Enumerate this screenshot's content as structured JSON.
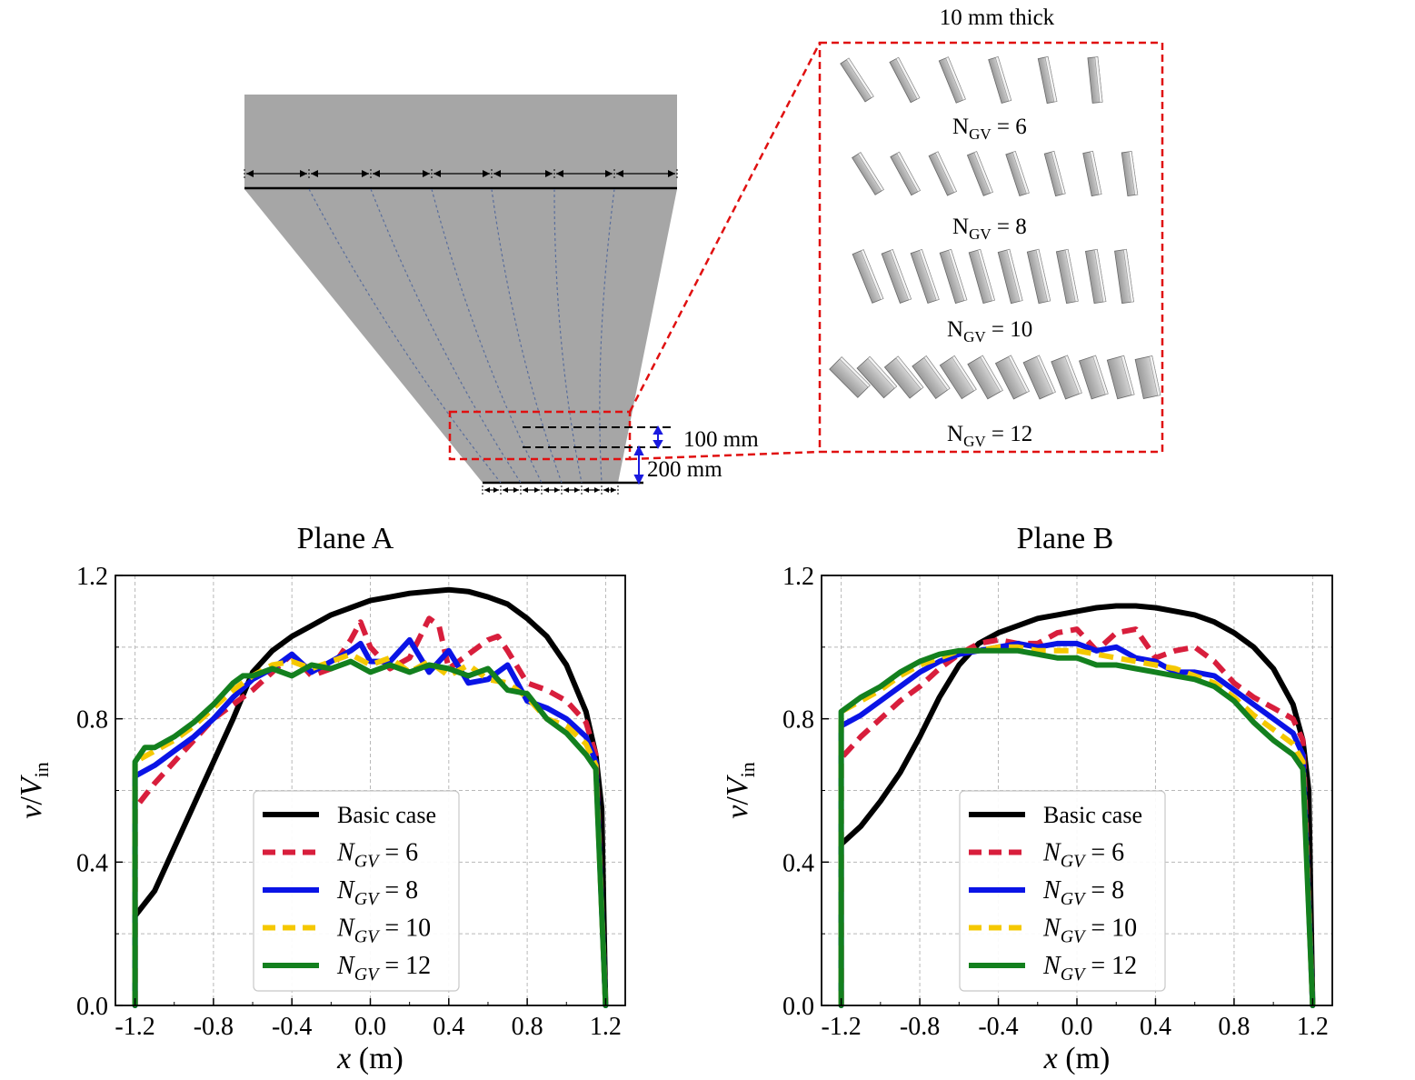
{
  "diagram": {
    "inset_title": "10 mm thick",
    "dim_top": "100 mm",
    "dim_bottom": "200 mm",
    "configs": [
      {
        "symbol": "N",
        "subscript": "GV",
        "equals": "= 6",
        "vanes": 6
      },
      {
        "symbol": "N",
        "subscript": "GV",
        "equals": "= 8",
        "vanes": 8
      },
      {
        "symbol": "N",
        "subscript": "GV",
        "equals": "= 10",
        "vanes": 10
      },
      {
        "symbol": "N",
        "subscript": "GV",
        "equals": "= 12",
        "vanes": 12
      }
    ]
  },
  "chart_data": [
    {
      "type": "line",
      "title": "Plane A",
      "xlabel_var": "x",
      "xlabel_unit": " (m)",
      "ylabel_num": "v",
      "ylabel_slash": "/",
      "ylabel_den": "V",
      "ylabel_sub": "in",
      "xlim": [
        -1.3,
        1.3
      ],
      "ylim": [
        0,
        1.2
      ],
      "xticks": [
        "-1.2",
        "-0.8",
        "-0.4",
        "0.0",
        "0.4",
        "0.8",
        "1.2"
      ],
      "yticks": [
        "0.0",
        "0.4",
        "0.8",
        "1.2"
      ],
      "grid": true,
      "legend_position": "lower-center",
      "series": [
        {
          "name": "Basic case",
          "color": "#000000",
          "dash": "solid",
          "x": [
            -1.2,
            -1.1,
            -1.0,
            -0.9,
            -0.8,
            -0.7,
            -0.6,
            -0.5,
            -0.4,
            -0.3,
            -0.2,
            -0.1,
            0.0,
            0.1,
            0.2,
            0.3,
            0.4,
            0.5,
            0.6,
            0.7,
            0.8,
            0.9,
            1.0,
            1.1,
            1.15,
            1.18,
            1.2
          ],
          "y": [
            0.25,
            0.32,
            0.44,
            0.56,
            0.68,
            0.8,
            0.93,
            0.99,
            1.03,
            1.06,
            1.09,
            1.11,
            1.13,
            1.14,
            1.15,
            1.155,
            1.16,
            1.155,
            1.14,
            1.12,
            1.08,
            1.03,
            0.95,
            0.82,
            0.7,
            0.55,
            0.0
          ]
        },
        {
          "name": "= 6",
          "label_symbol": "N",
          "label_sub": "GV",
          "color": "#d81e3c",
          "dash": "dashed",
          "x": [
            -1.2,
            -1.1,
            -1.0,
            -0.9,
            -0.8,
            -0.7,
            -0.6,
            -0.5,
            -0.4,
            -0.3,
            -0.2,
            -0.1,
            -0.05,
            0.0,
            0.1,
            0.2,
            0.3,
            0.35,
            0.4,
            0.5,
            0.6,
            0.65,
            0.7,
            0.8,
            0.9,
            1.0,
            1.1,
            1.15,
            1.2
          ],
          "y": [
            0.55,
            0.62,
            0.68,
            0.74,
            0.8,
            0.84,
            0.88,
            0.93,
            0.98,
            0.92,
            0.94,
            1.02,
            1.07,
            1.0,
            0.94,
            0.97,
            1.08,
            1.06,
            0.94,
            0.98,
            1.02,
            1.03,
            0.99,
            0.9,
            0.88,
            0.85,
            0.79,
            0.7,
            0.0
          ]
        },
        {
          "name": "= 8",
          "label_symbol": "N",
          "label_sub": "GV",
          "color": "#0a14e6",
          "dash": "solid",
          "x": [
            -1.2,
            -1.1,
            -1.0,
            -0.9,
            -0.8,
            -0.7,
            -0.6,
            -0.5,
            -0.4,
            -0.3,
            -0.2,
            -0.1,
            -0.05,
            0.0,
            0.1,
            0.2,
            0.3,
            0.4,
            0.5,
            0.6,
            0.7,
            0.8,
            0.9,
            1.0,
            1.1,
            1.15,
            1.2
          ],
          "y": [
            0.64,
            0.67,
            0.71,
            0.75,
            0.8,
            0.86,
            0.91,
            0.94,
            0.98,
            0.93,
            0.96,
            0.99,
            1.01,
            0.96,
            0.96,
            1.02,
            0.93,
            0.99,
            0.9,
            0.91,
            0.95,
            0.85,
            0.83,
            0.8,
            0.75,
            0.68,
            0.0
          ]
        },
        {
          "name": "= 10",
          "label_symbol": "N",
          "label_sub": "GV",
          "color": "#f5c800",
          "dash": "dashed",
          "x": [
            -1.2,
            -1.1,
            -1.0,
            -0.9,
            -0.8,
            -0.7,
            -0.6,
            -0.5,
            -0.4,
            -0.3,
            -0.2,
            -0.1,
            0.0,
            0.1,
            0.2,
            0.3,
            0.4,
            0.5,
            0.6,
            0.7,
            0.8,
            0.9,
            1.0,
            1.1,
            1.15,
            1.2
          ],
          "y": [
            0.68,
            0.71,
            0.74,
            0.78,
            0.83,
            0.88,
            0.92,
            0.95,
            0.96,
            0.94,
            0.96,
            0.98,
            0.95,
            0.97,
            0.93,
            0.96,
            0.92,
            0.95,
            0.91,
            0.9,
            0.86,
            0.8,
            0.78,
            0.73,
            0.67,
            0.0
          ]
        },
        {
          "name": "= 12",
          "label_symbol": "N",
          "label_sub": "GV",
          "color": "#13801e",
          "dash": "solid",
          "x": [
            -1.2,
            -1.15,
            -1.1,
            -1.0,
            -0.9,
            -0.8,
            -0.7,
            -0.65,
            -0.6,
            -0.5,
            -0.4,
            -0.3,
            -0.2,
            -0.1,
            0.0,
            0.1,
            0.2,
            0.3,
            0.4,
            0.5,
            0.6,
            0.7,
            0.8,
            0.9,
            1.0,
            1.1,
            1.15,
            1.2
          ],
          "y": [
            0.68,
            0.72,
            0.72,
            0.75,
            0.79,
            0.84,
            0.9,
            0.92,
            0.92,
            0.94,
            0.92,
            0.95,
            0.94,
            0.96,
            0.93,
            0.95,
            0.93,
            0.95,
            0.94,
            0.92,
            0.94,
            0.88,
            0.87,
            0.8,
            0.76,
            0.7,
            0.66,
            0.0
          ]
        }
      ]
    },
    {
      "type": "line",
      "title": "Plane B",
      "xlabel_var": "x",
      "xlabel_unit": " (m)",
      "ylabel_num": "v",
      "ylabel_slash": "/",
      "ylabel_den": "V",
      "ylabel_sub": "in",
      "xlim": [
        -1.3,
        1.3
      ],
      "ylim": [
        0,
        1.2
      ],
      "xticks": [
        "-1.2",
        "-0.8",
        "-0.4",
        "0.0",
        "0.4",
        "0.8",
        "1.2"
      ],
      "yticks": [
        "0.0",
        "0.4",
        "0.8",
        "1.2"
      ],
      "grid": true,
      "legend_position": "lower-center",
      "series": [
        {
          "name": "Basic case",
          "color": "#000000",
          "dash": "solid",
          "x": [
            -1.2,
            -1.1,
            -1.0,
            -0.9,
            -0.8,
            -0.7,
            -0.6,
            -0.5,
            -0.4,
            -0.3,
            -0.2,
            -0.1,
            0.0,
            0.1,
            0.2,
            0.3,
            0.4,
            0.5,
            0.6,
            0.7,
            0.8,
            0.9,
            1.0,
            1.1,
            1.15,
            1.18,
            1.2
          ],
          "y": [
            0.45,
            0.5,
            0.57,
            0.65,
            0.75,
            0.86,
            0.95,
            1.01,
            1.04,
            1.06,
            1.08,
            1.09,
            1.1,
            1.11,
            1.115,
            1.115,
            1.11,
            1.1,
            1.09,
            1.07,
            1.04,
            1.0,
            0.94,
            0.84,
            0.74,
            0.6,
            0.0
          ]
        },
        {
          "name": "= 6",
          "label_symbol": "N",
          "label_sub": "GV",
          "color": "#d81e3c",
          "dash": "dashed",
          "x": [
            -1.2,
            -1.1,
            -1.0,
            -0.9,
            -0.8,
            -0.7,
            -0.6,
            -0.5,
            -0.4,
            -0.3,
            -0.2,
            -0.1,
            0.0,
            0.1,
            0.2,
            0.3,
            0.4,
            0.5,
            0.6,
            0.7,
            0.8,
            0.9,
            1.0,
            1.1,
            1.15,
            1.2
          ],
          "y": [
            0.69,
            0.75,
            0.8,
            0.85,
            0.89,
            0.94,
            0.98,
            1.01,
            1.02,
            1.01,
            1.01,
            1.04,
            1.05,
            0.99,
            1.04,
            1.05,
            0.97,
            0.99,
            1.0,
            0.96,
            0.9,
            0.86,
            0.83,
            0.8,
            0.74,
            0.0
          ]
        },
        {
          "name": "= 8",
          "label_symbol": "N",
          "label_sub": "GV",
          "color": "#0a14e6",
          "dash": "solid",
          "x": [
            -1.2,
            -1.1,
            -1.0,
            -0.9,
            -0.8,
            -0.7,
            -0.6,
            -0.5,
            -0.4,
            -0.3,
            -0.2,
            -0.1,
            0.0,
            0.1,
            0.2,
            0.3,
            0.4,
            0.5,
            0.6,
            0.7,
            0.8,
            0.9,
            1.0,
            1.1,
            1.15,
            1.2
          ],
          "y": [
            0.78,
            0.81,
            0.85,
            0.89,
            0.93,
            0.96,
            0.98,
            0.99,
            1.0,
            1.01,
            1.0,
            1.01,
            1.01,
            0.99,
            1.0,
            0.97,
            0.96,
            0.93,
            0.93,
            0.92,
            0.88,
            0.84,
            0.8,
            0.76,
            0.7,
            0.0
          ]
        },
        {
          "name": "= 10",
          "label_symbol": "N",
          "label_sub": "GV",
          "color": "#f5c800",
          "dash": "dashed",
          "x": [
            -1.2,
            -1.1,
            -1.0,
            -0.9,
            -0.8,
            -0.7,
            -0.6,
            -0.5,
            -0.4,
            -0.3,
            -0.2,
            -0.1,
            0.0,
            0.1,
            0.2,
            0.3,
            0.4,
            0.5,
            0.6,
            0.7,
            0.8,
            0.9,
            1.0,
            1.1,
            1.15,
            1.2
          ],
          "y": [
            0.82,
            0.85,
            0.88,
            0.92,
            0.95,
            0.97,
            0.99,
            0.99,
            1.0,
            1.0,
            0.99,
            0.99,
            0.99,
            0.98,
            0.97,
            0.96,
            0.95,
            0.94,
            0.92,
            0.9,
            0.86,
            0.81,
            0.77,
            0.73,
            0.68,
            0.0
          ]
        },
        {
          "name": "= 12",
          "label_symbol": "N",
          "label_sub": "GV",
          "color": "#13801e",
          "dash": "solid",
          "x": [
            -1.2,
            -1.15,
            -1.1,
            -1.0,
            -0.9,
            -0.8,
            -0.7,
            -0.6,
            -0.5,
            -0.4,
            -0.3,
            -0.2,
            -0.1,
            0.0,
            0.1,
            0.2,
            0.3,
            0.4,
            0.5,
            0.6,
            0.7,
            0.8,
            0.9,
            1.0,
            1.1,
            1.15,
            1.2
          ],
          "y": [
            0.82,
            0.84,
            0.86,
            0.89,
            0.93,
            0.96,
            0.98,
            0.99,
            0.99,
            0.99,
            0.99,
            0.98,
            0.97,
            0.97,
            0.95,
            0.95,
            0.94,
            0.93,
            0.92,
            0.91,
            0.89,
            0.85,
            0.79,
            0.74,
            0.7,
            0.66,
            0.0
          ]
        }
      ]
    }
  ]
}
